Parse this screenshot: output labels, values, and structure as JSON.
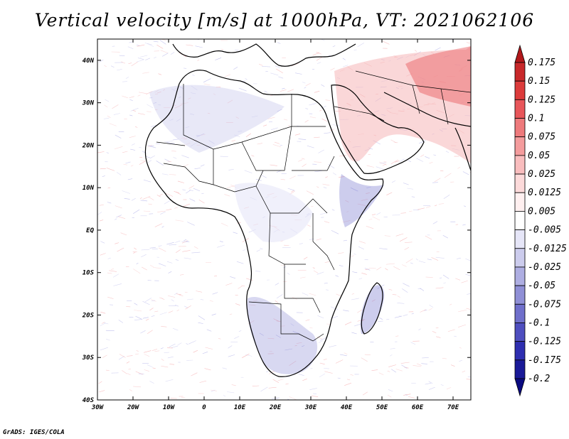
{
  "title": "Vertical velocity [m/s] at 1000hPa, VT: 2021062106",
  "credit": "GrADS: IGES/COLA",
  "map": {
    "lat_labels": [
      "40N",
      "30N",
      "20N",
      "10N",
      "EQ",
      "10S",
      "20S",
      "30S",
      "40S"
    ],
    "lon_labels": [
      "30W",
      "20W",
      "10W",
      "0",
      "10E",
      "20E",
      "30E",
      "40E",
      "50E",
      "60E",
      "70E"
    ],
    "lon_range": [
      -30,
      75
    ],
    "lat_range": [
      -40,
      45
    ]
  },
  "colorbar": {
    "labels": [
      "0.175",
      "0.15",
      "0.125",
      "0.1",
      "0.075",
      "0.05",
      "0.025",
      "0.0125",
      "0.005",
      "-0.005",
      "-0.0125",
      "-0.025",
      "-0.05",
      "-0.075",
      "-0.1",
      "-0.125",
      "-0.175",
      "-0.2"
    ],
    "colors": [
      "#b2181b",
      "#c8282a",
      "#dc3b3b",
      "#e8565a",
      "#ee7a7c",
      "#f49c9d",
      "#f9bdbe",
      "#fcdada",
      "#fff0f0",
      "#ffffff",
      "#e6e6f8",
      "#cccced",
      "#aeaee2",
      "#8f8fd6",
      "#6f6fcb",
      "#4e4ebf",
      "#2e2eb0",
      "#1a1a98",
      "#0a0a80"
    ]
  }
}
